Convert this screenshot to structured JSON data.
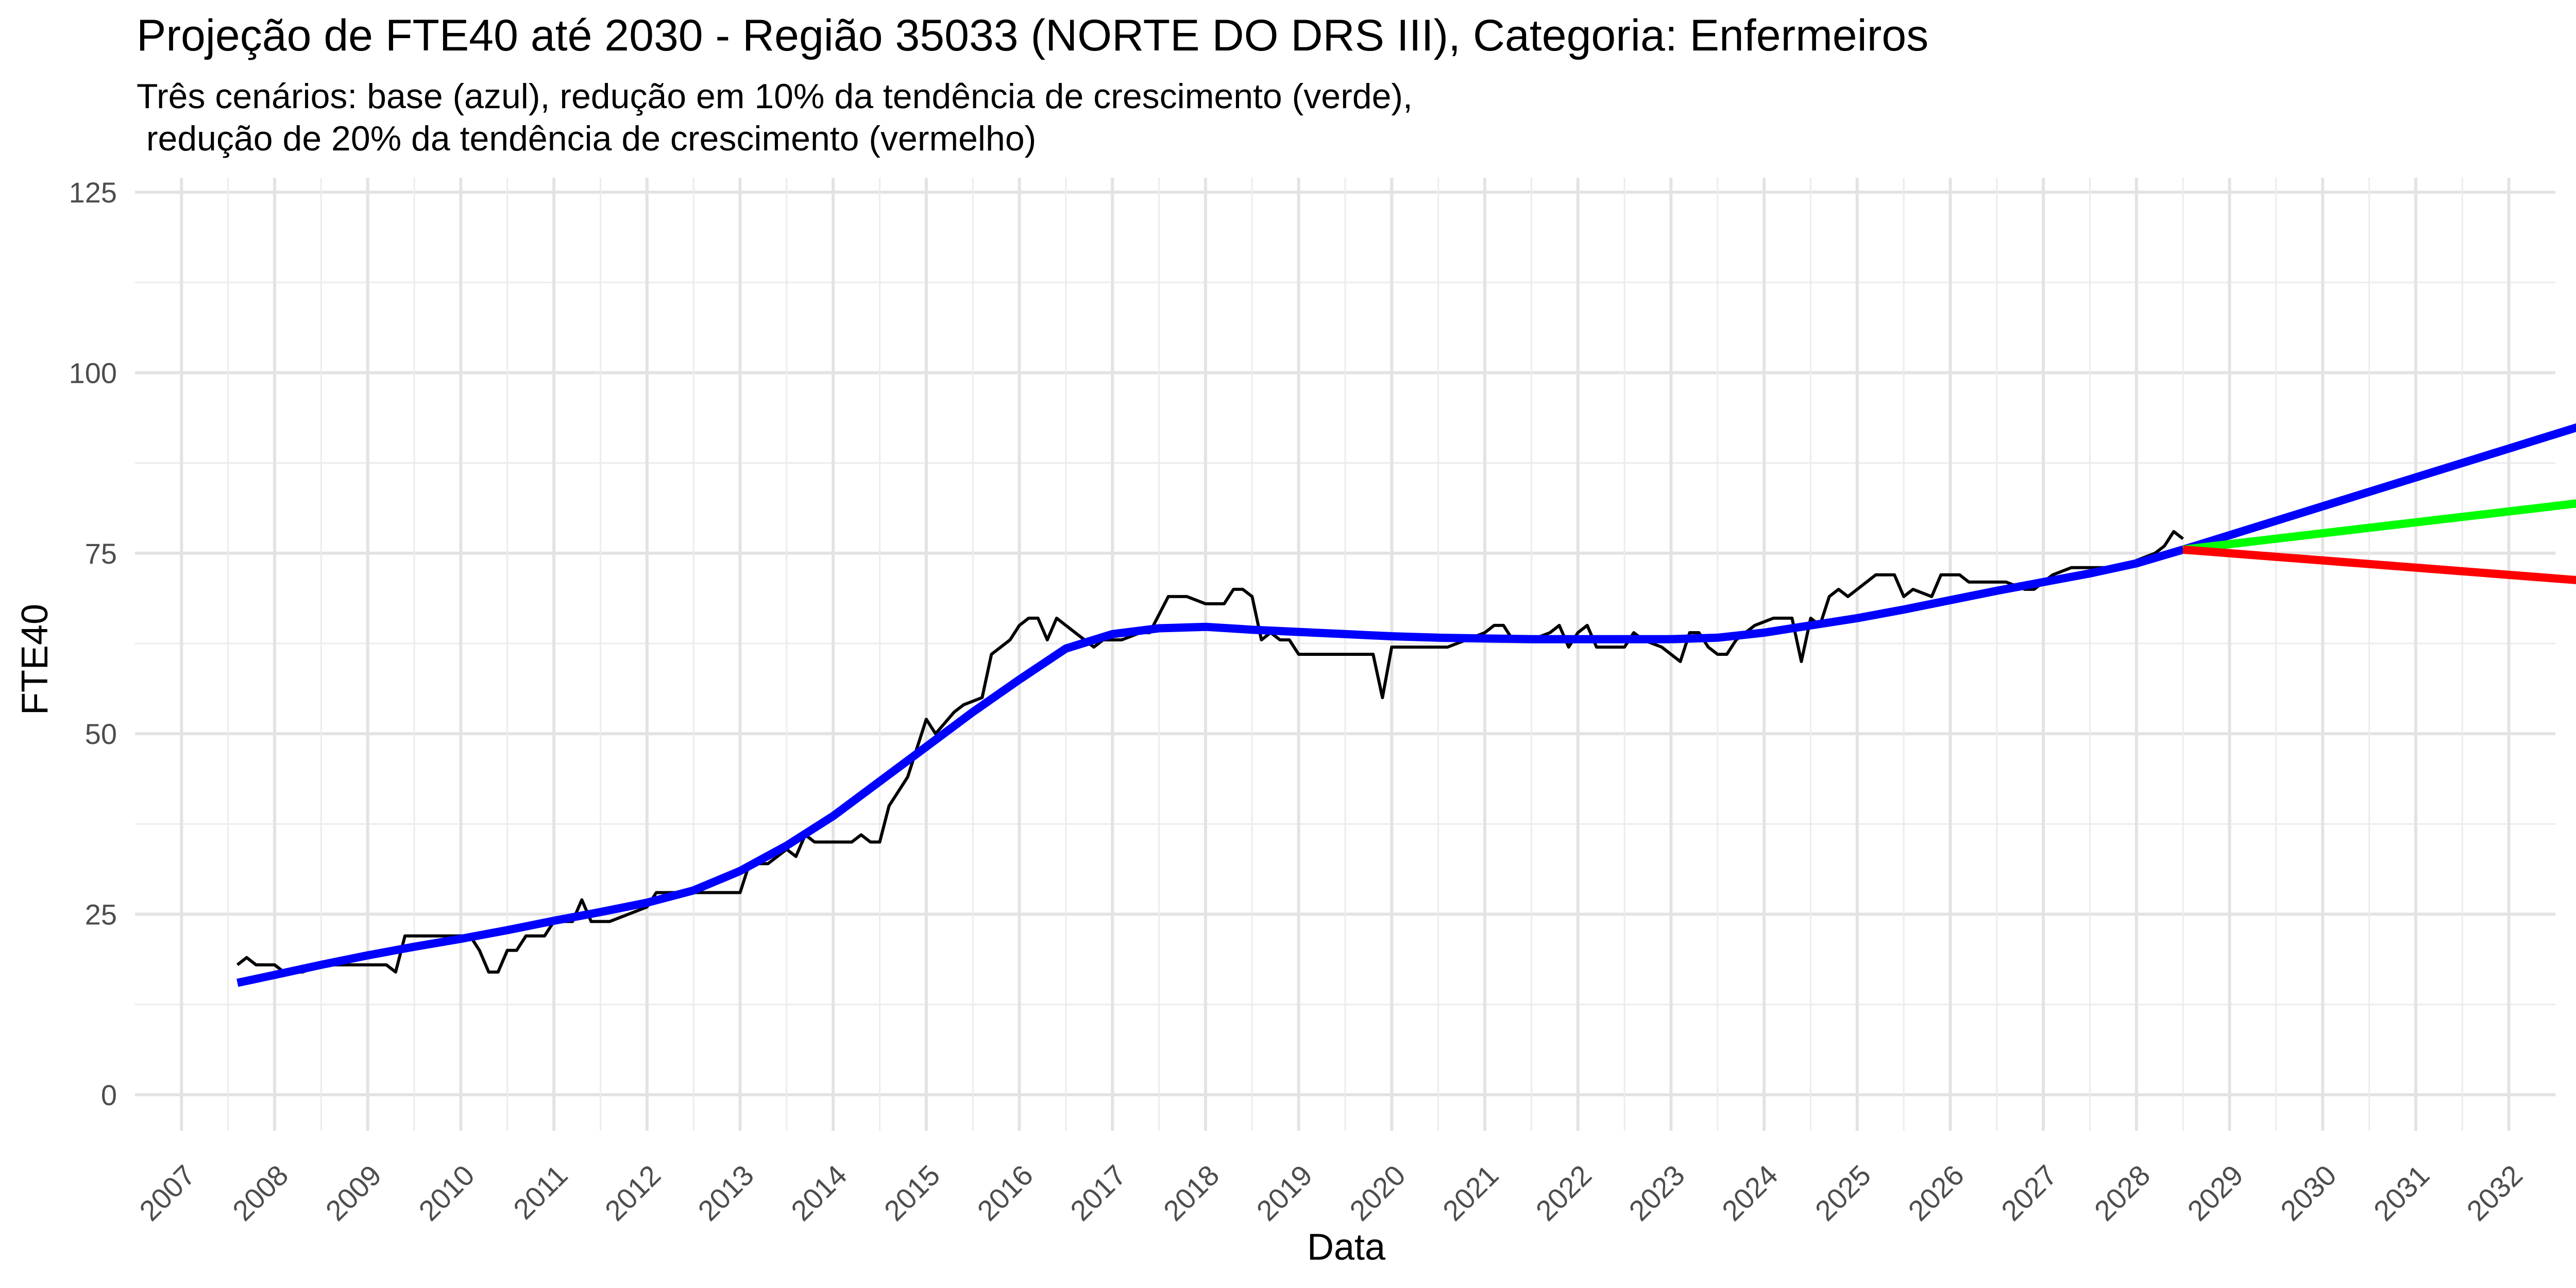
{
  "chart_data": {
    "type": "line",
    "title": "Projeção de FTE40 até 2030 - Região 35033 (NORTE DO DRS III), Categoria: Enfermeiros",
    "subtitle_lines": [
      "Três cenários: base (azul), redução em 10% da tendência de crescimento (verde),",
      " redução de 20% da tendência de crescimento (vermelho)"
    ],
    "xlabel": "Data",
    "ylabel": "FTE40",
    "xlim": [
      2006.5,
      2032.5
    ],
    "ylim": [
      -5,
      127
    ],
    "y_ticks": [
      0,
      25,
      50,
      75,
      100,
      125
    ],
    "x_ticks": [
      "2007",
      "2008",
      "2009",
      "2010",
      "2011",
      "2012",
      "2013",
      "2014",
      "2015",
      "2016",
      "2017",
      "2018",
      "2019",
      "2020",
      "2021",
      "2022",
      "2023",
      "2024",
      "2025",
      "2026",
      "2027",
      "2028",
      "2029",
      "2030",
      "2031",
      "2032"
    ],
    "grid": true,
    "legend": "none",
    "series": [
      {
        "color": "#000000",
        "width": 6,
        "points": [
          [
            2007.6,
            18
          ],
          [
            2007.7,
            19
          ],
          [
            2007.8,
            18
          ],
          [
            2008.0,
            18
          ],
          [
            2008.1,
            17
          ],
          [
            2008.3,
            17
          ],
          [
            2008.5,
            18
          ],
          [
            2008.8,
            18
          ],
          [
            2009.0,
            18
          ],
          [
            2009.2,
            18
          ],
          [
            2009.3,
            17
          ],
          [
            2009.4,
            22
          ],
          [
            2009.6,
            22
          ],
          [
            2009.8,
            22
          ],
          [
            2010.0,
            22
          ],
          [
            2010.1,
            22
          ],
          [
            2010.2,
            20
          ],
          [
            2010.3,
            17
          ],
          [
            2010.4,
            17
          ],
          [
            2010.5,
            20
          ],
          [
            2010.6,
            20
          ],
          [
            2010.7,
            22
          ],
          [
            2010.9,
            22
          ],
          [
            2011.0,
            24
          ],
          [
            2011.2,
            24
          ],
          [
            2011.3,
            27
          ],
          [
            2011.4,
            24
          ],
          [
            2011.6,
            24
          ],
          [
            2011.8,
            25
          ],
          [
            2012.0,
            26
          ],
          [
            2012.1,
            28
          ],
          [
            2012.3,
            28
          ],
          [
            2012.6,
            28
          ],
          [
            2012.8,
            28
          ],
          [
            2013.0,
            28
          ],
          [
            2013.1,
            32
          ],
          [
            2013.3,
            32
          ],
          [
            2013.5,
            34
          ],
          [
            2013.6,
            33
          ],
          [
            2013.7,
            36
          ],
          [
            2013.8,
            35
          ],
          [
            2014.0,
            35
          ],
          [
            2014.2,
            35
          ],
          [
            2014.3,
            36
          ],
          [
            2014.4,
            35
          ],
          [
            2014.5,
            35
          ],
          [
            2014.6,
            40
          ],
          [
            2014.8,
            44
          ],
          [
            2015.0,
            52
          ],
          [
            2015.1,
            50
          ],
          [
            2015.3,
            53
          ],
          [
            2015.4,
            54
          ],
          [
            2015.6,
            55
          ],
          [
            2015.7,
            61
          ],
          [
            2015.9,
            63
          ],
          [
            2016.0,
            65
          ],
          [
            2016.1,
            66
          ],
          [
            2016.2,
            66
          ],
          [
            2016.3,
            63
          ],
          [
            2016.4,
            66
          ],
          [
            2016.6,
            64
          ],
          [
            2016.8,
            62
          ],
          [
            2016.9,
            63
          ],
          [
            2017.1,
            63
          ],
          [
            2017.3,
            64
          ],
          [
            2017.4,
            64
          ],
          [
            2017.6,
            69
          ],
          [
            2017.8,
            69
          ],
          [
            2018.0,
            68
          ],
          [
            2018.2,
            68
          ],
          [
            2018.3,
            70
          ],
          [
            2018.4,
            70
          ],
          [
            2018.5,
            69
          ],
          [
            2018.6,
            63
          ],
          [
            2018.7,
            64
          ],
          [
            2018.8,
            63
          ],
          [
            2018.9,
            63
          ],
          [
            2019.0,
            61
          ],
          [
            2019.3,
            61
          ],
          [
            2019.6,
            61
          ],
          [
            2019.8,
            61
          ],
          [
            2019.9,
            55
          ],
          [
            2020.0,
            62
          ],
          [
            2020.2,
            62
          ],
          [
            2020.4,
            62
          ],
          [
            2020.6,
            62
          ],
          [
            2020.8,
            63
          ],
          [
            2021.0,
            64
          ],
          [
            2021.1,
            65
          ],
          [
            2021.2,
            65
          ],
          [
            2021.3,
            63
          ],
          [
            2021.5,
            63
          ],
          [
            2021.7,
            64
          ],
          [
            2021.8,
            65
          ],
          [
            2021.9,
            62
          ],
          [
            2022.0,
            64
          ],
          [
            2022.1,
            65
          ],
          [
            2022.2,
            62
          ],
          [
            2022.3,
            62
          ],
          [
            2022.5,
            62
          ],
          [
            2022.6,
            64
          ],
          [
            2022.7,
            63
          ],
          [
            2022.9,
            62
          ],
          [
            2023.0,
            61
          ],
          [
            2023.1,
            60
          ],
          [
            2023.2,
            64
          ],
          [
            2023.3,
            64
          ],
          [
            2023.4,
            62
          ],
          [
            2023.5,
            61
          ],
          [
            2023.6,
            61
          ],
          [
            2023.7,
            63
          ],
          [
            2023.9,
            65
          ],
          [
            2024.1,
            66
          ],
          [
            2024.3,
            66
          ],
          [
            2024.4,
            60
          ],
          [
            2024.5,
            66
          ],
          [
            2024.6,
            65
          ],
          [
            2024.7,
            69
          ],
          [
            2024.8,
            70
          ],
          [
            2024.9,
            69
          ],
          [
            2025.0,
            70
          ],
          [
            2025.2,
            72
          ],
          [
            2025.4,
            72
          ],
          [
            2025.5,
            69
          ],
          [
            2025.6,
            70
          ],
          [
            2025.8,
            69
          ],
          [
            2025.9,
            72
          ],
          [
            2026.1,
            72
          ],
          [
            2026.2,
            71
          ],
          [
            2026.4,
            71
          ],
          [
            2026.6,
            71
          ],
          [
            2026.8,
            70
          ],
          [
            2026.9,
            70
          ],
          [
            2027.0,
            71
          ],
          [
            2027.1,
            72
          ],
          [
            2027.3,
            73
          ],
          [
            2027.5,
            73
          ],
          [
            2027.7,
            73
          ],
          [
            2027.9,
            73
          ],
          [
            2028.0,
            74
          ],
          [
            2028.2,
            75
          ],
          [
            2028.3,
            76
          ],
          [
            2028.4,
            78
          ],
          [
            2028.5,
            77
          ]
        ]
      },
      {
        "color": "#0000ff",
        "width": 16,
        "points": [
          [
            2007.6,
            15.5
          ],
          [
            2008.0,
            16.6
          ],
          [
            2008.5,
            18.0
          ],
          [
            2009.0,
            19.3
          ],
          [
            2009.5,
            20.5
          ],
          [
            2010.0,
            21.6
          ],
          [
            2010.5,
            22.8
          ],
          [
            2011.0,
            24.1
          ],
          [
            2011.5,
            25.3
          ],
          [
            2012.0,
            26.6
          ],
          [
            2012.5,
            28.3
          ],
          [
            2013.0,
            31.0
          ],
          [
            2013.5,
            34.5
          ],
          [
            2014.0,
            38.6
          ],
          [
            2014.5,
            43.4
          ],
          [
            2015.0,
            48.2
          ],
          [
            2015.5,
            53.0
          ],
          [
            2016.0,
            57.5
          ],
          [
            2016.5,
            61.8
          ],
          [
            2017.0,
            63.8
          ],
          [
            2017.5,
            64.6
          ],
          [
            2018.0,
            64.8
          ],
          [
            2018.5,
            64.4
          ],
          [
            2019.0,
            64.1
          ],
          [
            2019.5,
            63.8
          ],
          [
            2020.0,
            63.5
          ],
          [
            2020.5,
            63.3
          ],
          [
            2021.0,
            63.2
          ],
          [
            2021.5,
            63.1
          ],
          [
            2022.0,
            63.1
          ],
          [
            2022.5,
            63.1
          ],
          [
            2023.0,
            63.1
          ],
          [
            2023.5,
            63.3
          ],
          [
            2024.0,
            64.0
          ],
          [
            2024.5,
            65.0
          ],
          [
            2025.0,
            66.0
          ],
          [
            2025.5,
            67.2
          ],
          [
            2026.0,
            68.5
          ],
          [
            2026.5,
            69.8
          ],
          [
            2027.0,
            71.0
          ],
          [
            2027.5,
            72.2
          ],
          [
            2028.0,
            73.6
          ],
          [
            2028.5,
            75.5
          ],
          [
            2029.0,
            77.5
          ],
          [
            2030.0,
            81.5
          ],
          [
            2031.0,
            85.5
          ],
          [
            2032.0,
            89.5
          ],
          [
            2032.8,
            92.7
          ]
        ]
      },
      {
        "color": "#00ff00",
        "width": 16,
        "points": [
          [
            2028.5,
            75.5
          ],
          [
            2032.8,
            82.0
          ]
        ]
      },
      {
        "color": "#ff0000",
        "width": 16,
        "points": [
          [
            2028.5,
            75.5
          ],
          [
            2032.8,
            71.2
          ]
        ]
      }
    ]
  }
}
